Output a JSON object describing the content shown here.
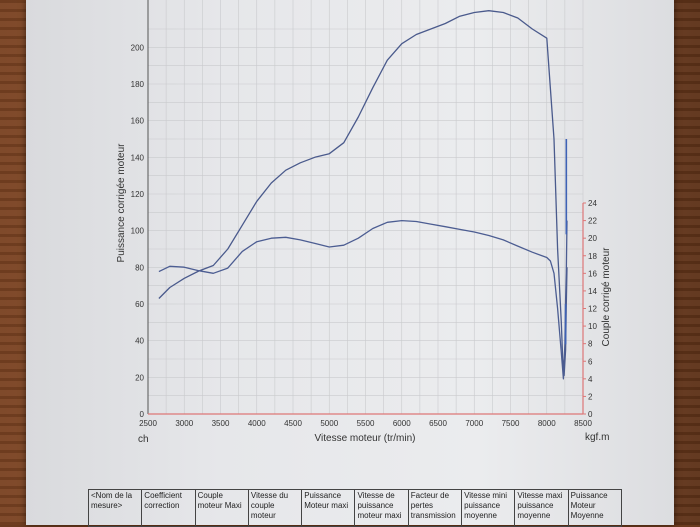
{
  "chart_data": {
    "type": "line",
    "xlabel": "Vitesse moteur (tr/min)",
    "ylabel_left": "Puissance corrigée moteur",
    "ylabel_right": "Couple corrigé moteur",
    "x_unit": "ch",
    "right_unit": "kgf.m",
    "xlim": [
      2500,
      8500
    ],
    "ylim_left": [
      0,
      220
    ],
    "ylim_right": [
      0,
      24
    ],
    "x_ticks": [
      2500,
      3000,
      3500,
      4000,
      4500,
      5000,
      5500,
      6000,
      6500,
      7000,
      7500,
      8000,
      8500
    ],
    "y_ticks_left": [
      0,
      20,
      40,
      60,
      80,
      100,
      120,
      140,
      160,
      180,
      200
    ],
    "y_ticks_right": [
      0,
      2,
      4,
      6,
      8,
      10,
      12,
      14,
      16,
      18,
      20,
      22,
      24
    ],
    "grid": true,
    "series": [
      {
        "axis": "left",
        "x": [
          2650,
          2800,
          3000,
          3200,
          3400,
          3600,
          3800,
          4000,
          4200,
          4400,
          4600,
          4800,
          5000,
          5200,
          5400,
          5600,
          5800,
          6000,
          6200,
          6400,
          6600,
          6800,
          7000,
          7200,
          7400,
          7600,
          7800,
          8000,
          8100,
          8150,
          8200,
          8220,
          8240,
          8260,
          8270,
          8280
        ],
        "y": [
          63,
          69,
          74,
          78,
          81,
          90,
          103,
          116,
          126,
          133,
          137,
          140,
          142,
          148,
          162,
          178,
          193,
          202,
          207,
          210,
          213,
          217,
          219,
          220,
          219,
          216,
          210,
          205,
          150,
          90,
          50,
          30,
          21,
          35,
          60,
          80
        ]
      },
      {
        "axis": "right",
        "x": [
          2650,
          2800,
          3000,
          3200,
          3400,
          3600,
          3800,
          4000,
          4200,
          4400,
          4600,
          4800,
          5000,
          5200,
          5400,
          5600,
          5800,
          6000,
          6200,
          6400,
          6600,
          6800,
          7000,
          7200,
          7400,
          7600,
          7800,
          8000,
          8050,
          8100,
          8150,
          8200,
          8230,
          8250,
          8260,
          8270,
          8280
        ],
        "y": [
          16.2,
          16.8,
          16.7,
          16.3,
          16.0,
          16.6,
          18.5,
          19.6,
          20.0,
          20.1,
          19.8,
          19.4,
          19.0,
          19.2,
          20.0,
          21.1,
          21.8,
          22.0,
          21.9,
          21.6,
          21.3,
          21.0,
          20.7,
          20.3,
          19.8,
          19.1,
          18.4,
          17.8,
          17.4,
          16.0,
          12.0,
          7.0,
          4.0,
          8.0,
          13.0,
          16.0,
          22.0
        ]
      }
    ]
  },
  "table": {
    "headers": [
      "<Nom de la mesure>",
      "Coefficient correction",
      "Couple moteur Maxi",
      "Vitesse du couple moteur",
      "Puissance Moteur maxi",
      "Vitesse de puissance moteur maxi",
      "Facteur de pertes transmission",
      "Vitesse mini puissance moyenne",
      "Vitesse maxi puissance moyenne",
      "Puissance Moteur Moyenne"
    ]
  }
}
